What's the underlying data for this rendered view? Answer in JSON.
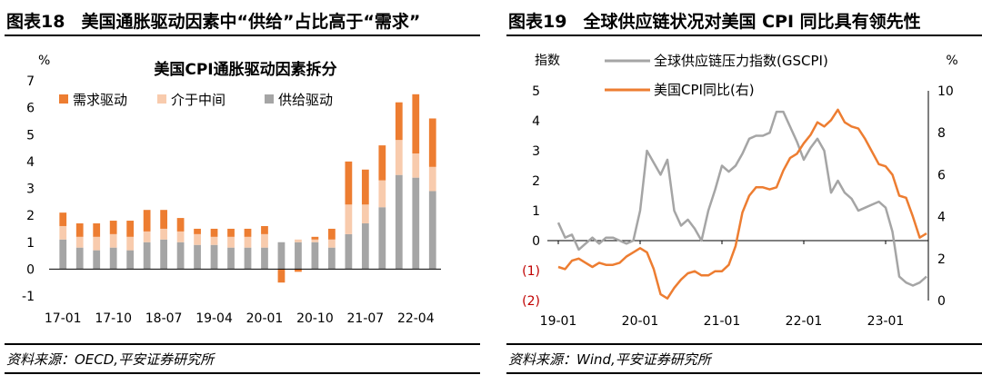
{
  "left": {
    "figure_label": "图表18",
    "figure_title": "美国通胀驱动因素中“供给”占比高于“需求”",
    "source": "资料来源：OECD,平安证券研究所"
  },
  "right": {
    "figure_label": "图表19",
    "figure_title": "全球供应链状况对美国 CPI 同比具有领先性",
    "source": "资料来源：Wind,平安证券研究所"
  },
  "chart_data": [
    {
      "type": "bar",
      "stacked": true,
      "title": "美国CPI通胀驱动因素拆分",
      "ylabel": "%",
      "ylim": [
        -1,
        7
      ],
      "yticks": [
        -1,
        0,
        1,
        2,
        3,
        4,
        5,
        6,
        7
      ],
      "grid": false,
      "legend_position": "top-left",
      "x_tick_labels": [
        "17-01",
        "17-10",
        "18-07",
        "19-04",
        "20-01",
        "20-10",
        "21-07",
        "22-04"
      ],
      "categories": [
        "17-01",
        "17-04",
        "17-07",
        "17-10",
        "18-01",
        "18-04",
        "18-07",
        "18-10",
        "19-01",
        "19-04",
        "19-07",
        "19-10",
        "20-01",
        "20-04",
        "20-07",
        "20-10",
        "21-01",
        "21-04",
        "21-07",
        "21-10",
        "22-01",
        "22-04",
        "22-07"
      ],
      "series": [
        {
          "name": "需求驱动",
          "color": "#ED7D31",
          "values": [
            0.5,
            0.5,
            0.5,
            0.5,
            0.6,
            0.8,
            0.7,
            0.5,
            0.2,
            0.3,
            0.3,
            0.3,
            0.3,
            -0.5,
            -0.1,
            0.1,
            0.4,
            1.6,
            1.3,
            1.3,
            1.4,
            2.2,
            1.8
          ]
        },
        {
          "name": "介于中间",
          "color": "#F8CBAD",
          "values": [
            0.5,
            0.4,
            0.5,
            0.5,
            0.5,
            0.4,
            0.4,
            0.4,
            0.4,
            0.3,
            0.4,
            0.4,
            0.5,
            0.0,
            0.1,
            0.1,
            0.3,
            1.1,
            0.7,
            1.0,
            1.3,
            0.9,
            0.9
          ]
        },
        {
          "name": "供给驱动",
          "color": "#A5A5A5",
          "values": [
            1.1,
            0.8,
            0.7,
            0.8,
            0.7,
            1.0,
            1.1,
            1.0,
            0.9,
            0.9,
            0.8,
            0.8,
            0.8,
            1.0,
            1.0,
            1.0,
            0.8,
            1.3,
            1.7,
            2.3,
            3.5,
            3.4,
            2.9
          ]
        }
      ]
    },
    {
      "type": "line",
      "dual_axis": true,
      "ylabel_left": "指数",
      "ylabel_right": "%",
      "ylim_left": [
        -2,
        5
      ],
      "ylim_right": [
        0,
        10
      ],
      "yticks_left": [
        "(2)",
        "(1)",
        "0",
        "1",
        "2",
        "3",
        "4",
        "5"
      ],
      "yticks_right": [
        0,
        2,
        4,
        6,
        8,
        10
      ],
      "x_tick_labels": [
        "19-01",
        "20-01",
        "21-01",
        "22-01",
        "23-01"
      ],
      "x_range": [
        "2019-01",
        "2023-07"
      ],
      "legend_position": "top-center",
      "grid": false,
      "series": [
        {
          "name": "全球供应链压力指数(GSCPI)",
          "axis": "left",
          "color": "#A5A5A5",
          "values": [
            0.6,
            0.1,
            0.2,
            -0.3,
            -0.1,
            0.1,
            -0.1,
            0.1,
            0.1,
            0.0,
            -0.1,
            0.0,
            1.0,
            3.0,
            2.6,
            2.2,
            2.7,
            1.0,
            0.5,
            0.7,
            0.4,
            0.0,
            1.0,
            1.7,
            2.5,
            2.3,
            2.5,
            2.9,
            3.4,
            3.5,
            3.5,
            3.6,
            4.3,
            4.3,
            3.8,
            3.3,
            2.7,
            3.1,
            3.4,
            3.0,
            1.6,
            2.0,
            1.6,
            1.4,
            1.0,
            1.1,
            1.2,
            1.3,
            1.1,
            0.3,
            -1.2,
            -1.4,
            -1.5,
            -1.4,
            -1.2
          ]
        },
        {
          "name": "美国CPI同比(右)",
          "axis": "right",
          "color": "#ED7D31",
          "values": [
            1.6,
            1.5,
            1.9,
            2.0,
            1.8,
            1.6,
            1.8,
            1.7,
            1.7,
            1.8,
            2.1,
            2.3,
            2.5,
            2.3,
            1.5,
            0.3,
            0.1,
            0.6,
            1.0,
            1.3,
            1.4,
            1.2,
            1.2,
            1.4,
            1.4,
            1.7,
            2.6,
            4.2,
            5.0,
            5.4,
            5.4,
            5.3,
            5.4,
            6.2,
            6.8,
            7.0,
            7.5,
            7.9,
            8.5,
            8.3,
            8.6,
            9.1,
            8.5,
            8.3,
            8.2,
            7.7,
            7.1,
            6.5,
            6.4,
            6.0,
            5.0,
            4.9,
            4.0,
            3.0,
            3.2
          ]
        }
      ]
    }
  ]
}
